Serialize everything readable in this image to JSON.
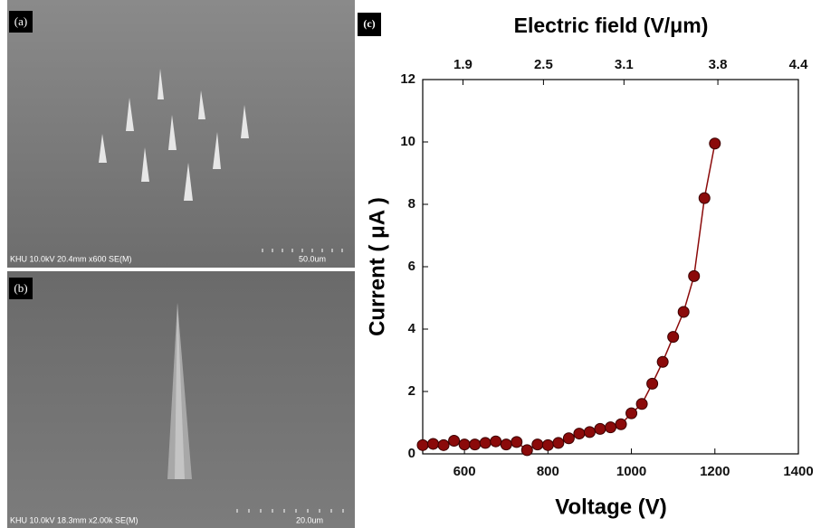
{
  "panels": {
    "a": {
      "label": "(a)",
      "caption": "KHU 10.0kV 20.4mm x600 SE(M)",
      "scale": "50.0um"
    },
    "b": {
      "label": "(b)",
      "caption": "KHU 10.0kV 18.3mm x2.00k SE(M)",
      "scale": "20.0um"
    }
  },
  "chart_data": {
    "type": "line",
    "panel_label": "(c)",
    "title": "Electric field (V/μm)",
    "x_label": "Voltage (V)",
    "y_label": "Current ( μA )",
    "x": [
      500,
      525,
      550,
      575,
      600,
      625,
      650,
      675,
      700,
      725,
      750,
      775,
      800,
      825,
      850,
      875,
      900,
      925,
      950,
      975,
      1000,
      1025,
      1050,
      1075,
      1100,
      1125,
      1150,
      1175,
      1200
    ],
    "values": [
      0.28,
      0.32,
      0.28,
      0.42,
      0.3,
      0.3,
      0.35,
      0.4,
      0.3,
      0.38,
      0.12,
      0.3,
      0.28,
      0.35,
      0.5,
      0.65,
      0.7,
      0.8,
      0.85,
      0.95,
      1.3,
      1.6,
      2.25,
      2.95,
      3.75,
      4.55,
      5.7,
      8.2,
      9.95
    ],
    "color": "#8b0a0a",
    "markers": true,
    "xlim": [
      500,
      1400
    ],
    "xticks": [
      600,
      800,
      1000,
      1200,
      1400
    ],
    "x2lim": [
      1.6,
      4.4
    ],
    "x2ticks": [
      1.9,
      2.5,
      3.1,
      3.8,
      4.4
    ],
    "ylim": [
      0,
      12
    ],
    "yticks": [
      0,
      2,
      4,
      6,
      8,
      10,
      12
    ],
    "grid": false
  }
}
